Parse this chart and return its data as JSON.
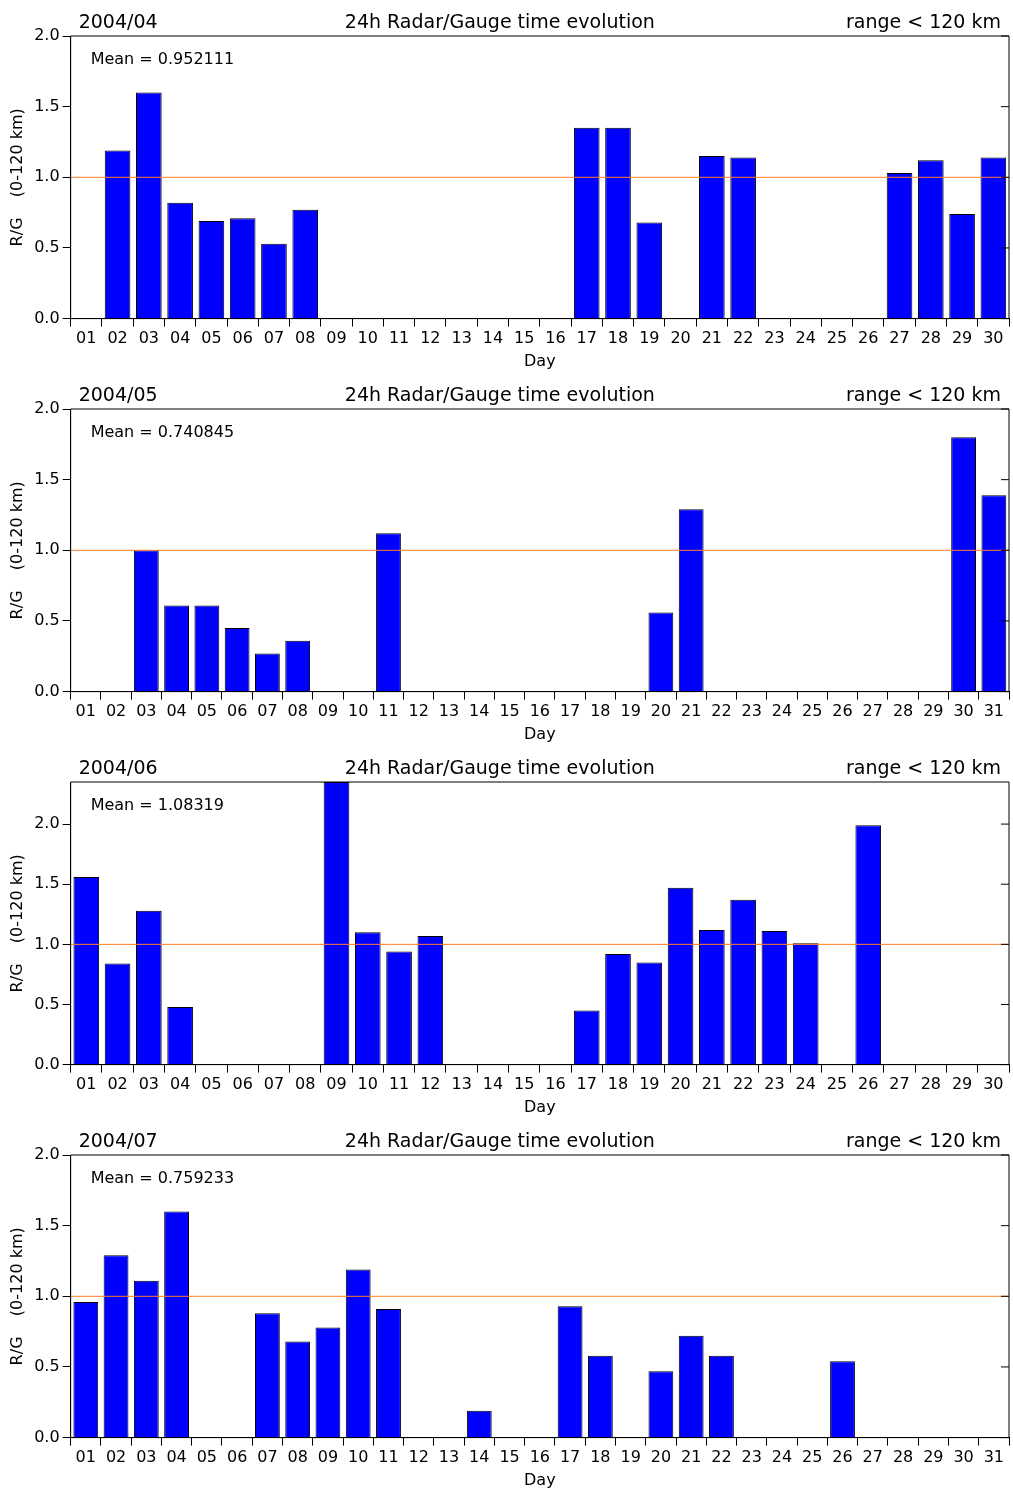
{
  "chart_data": [
    {
      "type": "bar",
      "title": "24h Radar/Gauge time evolution",
      "xlabel": "Day",
      "ylabel": "R/G    (0-120 km)",
      "annotations": [
        "2004/04",
        "range < 120 km",
        "Mean = 0.952111"
      ],
      "categories": [
        "01",
        "02",
        "03",
        "04",
        "05",
        "06",
        "07",
        "08",
        "09",
        "10",
        "11",
        "12",
        "13",
        "14",
        "15",
        "16",
        "17",
        "18",
        "19",
        "20",
        "21",
        "22",
        "23",
        "24",
        "25",
        "26",
        "27",
        "28",
        "29",
        "30"
      ],
      "values": [
        null,
        1.19,
        1.6,
        0.82,
        0.69,
        0.71,
        0.53,
        0.77,
        null,
        null,
        null,
        null,
        null,
        null,
        null,
        null,
        1.35,
        1.35,
        0.68,
        null,
        1.15,
        1.14,
        null,
        null,
        null,
        null,
        1.03,
        1.12,
        0.74,
        1.14
      ],
      "color": "#0000ff",
      "ylim": [
        0,
        2
      ],
      "yticks": [
        {
          "value": 0,
          "label": "0.0"
        },
        {
          "value": 0.5,
          "label": "0.5"
        },
        {
          "value": 1,
          "label": "1.0"
        },
        {
          "value": 1.5,
          "label": "1.5"
        },
        {
          "value": 2,
          "label": "2.0"
        }
      ],
      "ref_lines": [
        {
          "axis": "y",
          "value": 1,
          "color": "#ff7f27"
        }
      ],
      "grid": false,
      "legend": false
    },
    {
      "type": "bar",
      "title": "24h Radar/Gauge time evolution",
      "xlabel": "Day",
      "ylabel": "R/G    (0-120 km)",
      "annotations": [
        "2004/05",
        "range < 120 km",
        "Mean = 0.740845"
      ],
      "categories": [
        "01",
        "02",
        "03",
        "04",
        "05",
        "06",
        "07",
        "08",
        "09",
        "10",
        "11",
        "12",
        "13",
        "14",
        "15",
        "16",
        "17",
        "18",
        "19",
        "20",
        "21",
        "22",
        "23",
        "24",
        "25",
        "26",
        "27",
        "28",
        "29",
        "30",
        "31"
      ],
      "values": [
        null,
        null,
        1.0,
        0.61,
        0.61,
        0.45,
        0.27,
        0.36,
        null,
        null,
        1.12,
        null,
        null,
        null,
        null,
        null,
        null,
        null,
        null,
        0.56,
        1.29,
        null,
        null,
        null,
        null,
        null,
        null,
        null,
        null,
        1.8,
        1.39
      ],
      "color": "#0000ff",
      "ylim": [
        0,
        2
      ],
      "yticks": [
        {
          "value": 0,
          "label": "0.0"
        },
        {
          "value": 0.5,
          "label": "0.5"
        },
        {
          "value": 1,
          "label": "1.0"
        },
        {
          "value": 1.5,
          "label": "1.5"
        },
        {
          "value": 2,
          "label": "2.0"
        }
      ],
      "ref_lines": [
        {
          "axis": "y",
          "value": 1,
          "color": "#ff7f27"
        }
      ],
      "grid": false,
      "legend": false
    },
    {
      "type": "bar",
      "title": "24h Radar/Gauge time evolution",
      "xlabel": "Day",
      "ylabel": "R/G    (0-120 km)",
      "annotations": [
        "2004/06",
        "range < 120 km",
        "Mean = 1.08319"
      ],
      "categories": [
        "01",
        "02",
        "03",
        "04",
        "05",
        "06",
        "07",
        "08",
        "09",
        "10",
        "11",
        "12",
        "13",
        "14",
        "15",
        "16",
        "17",
        "18",
        "19",
        "20",
        "21",
        "22",
        "23",
        "24",
        "25",
        "26",
        "27",
        "28",
        "29",
        "30"
      ],
      "values": [
        1.56,
        0.84,
        1.28,
        0.48,
        null,
        null,
        null,
        null,
        2.35,
        1.1,
        0.94,
        1.07,
        null,
        null,
        null,
        null,
        0.45,
        0.92,
        0.85,
        1.47,
        1.12,
        1.37,
        1.11,
        1.01,
        null,
        1.99,
        null,
        null,
        null,
        null
      ],
      "color": "#0000ff",
      "ylim": [
        0,
        2.35
      ],
      "yticks": [
        {
          "value": 0,
          "label": "0.0"
        },
        {
          "value": 0.5,
          "label": "0.5"
        },
        {
          "value": 1,
          "label": "1.0"
        },
        {
          "value": 1.5,
          "label": "1.5"
        },
        {
          "value": 2,
          "label": "2.0"
        }
      ],
      "ref_lines": [
        {
          "axis": "y",
          "value": 1,
          "color": "#ff7f27"
        }
      ],
      "grid": false,
      "legend": false
    },
    {
      "type": "bar",
      "title": "24h Radar/Gauge time evolution",
      "xlabel": "Day",
      "ylabel": "R/G    (0-120 km)",
      "annotations": [
        "2004/07",
        "range < 120 km",
        "Mean = 0.759233"
      ],
      "categories": [
        "01",
        "02",
        "03",
        "04",
        "05",
        "06",
        "07",
        "08",
        "09",
        "10",
        "11",
        "12",
        "13",
        "14",
        "15",
        "16",
        "17",
        "18",
        "19",
        "20",
        "21",
        "22",
        "23",
        "24",
        "25",
        "26",
        "27",
        "28",
        "29",
        "30",
        "31"
      ],
      "values": [
        0.96,
        1.29,
        1.11,
        1.6,
        null,
        null,
        0.88,
        0.68,
        0.78,
        1.19,
        0.91,
        null,
        null,
        0.19,
        null,
        null,
        0.93,
        0.58,
        null,
        0.47,
        0.72,
        0.58,
        null,
        null,
        null,
        0.54,
        null,
        null,
        null,
        null,
        null
      ],
      "color": "#0000ff",
      "ylim": [
        0,
        2
      ],
      "yticks": [
        {
          "value": 0,
          "label": "0.0"
        },
        {
          "value": 0.5,
          "label": "0.5"
        },
        {
          "value": 1,
          "label": "1.0"
        },
        {
          "value": 1.5,
          "label": "1.5"
        },
        {
          "value": 2,
          "label": "2.0"
        }
      ],
      "ref_lines": [
        {
          "axis": "y",
          "value": 1,
          "color": "#ff7f27"
        }
      ],
      "grid": false,
      "legend": false
    }
  ]
}
